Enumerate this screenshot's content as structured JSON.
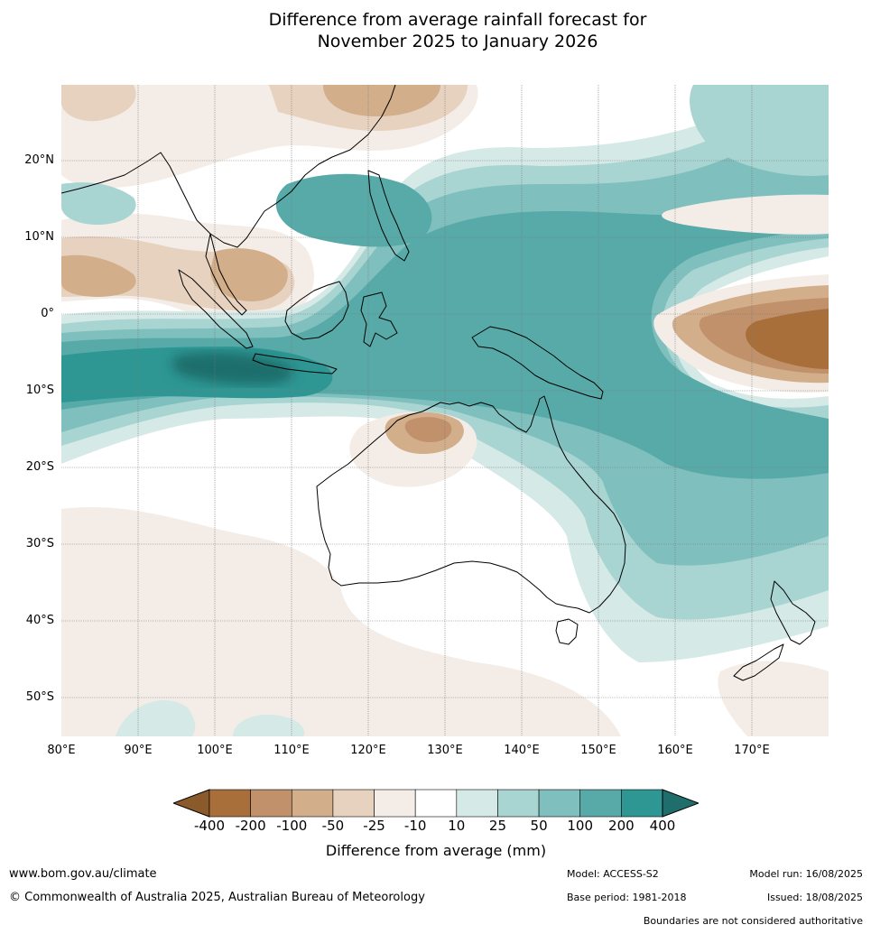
{
  "title_line1": "Difference from average rainfall forecast for",
  "title_line2": "November 2025 to January 2026",
  "latitude_labels": [
    "20°N",
    "10°N",
    "0°",
    "10°S",
    "20°S",
    "30°S",
    "40°S",
    "50°S"
  ],
  "longitude_labels": [
    "80°E",
    "90°E",
    "100°E",
    "110°E",
    "120°E",
    "130°E",
    "140°E",
    "150°E",
    "160°E",
    "170°E"
  ],
  "colorbar": {
    "labels": [
      "-400",
      "-200",
      "-100",
      "-50",
      "-25",
      "-10",
      "10",
      "25",
      "50",
      "100",
      "200",
      "400"
    ],
    "colors": [
      "#8b5a2b",
      "#a86f3b",
      "#c0916a",
      "#d2ae8b",
      "#e6d2bf",
      "#f4ede7",
      "#ffffff",
      "#d5e9e7",
      "#a8d4d2",
      "#7fbfbd",
      "#57aaa8",
      "#2e9693",
      "#1f6e6c"
    ],
    "title": "Difference from average (mm)"
  },
  "footer": {
    "website": "www.bom.gov.au/climate",
    "copyright": "© Commonwealth of Australia 2025, Australian Bureau of Meteorology",
    "model": "Model: ACCESS-S2",
    "base_period": "Base period: 1981-2018",
    "model_run": "Model run: 16/08/2025",
    "issued": "Issued: 18/08/2025",
    "disclaimer": "Boundaries are not considered authoritative"
  }
}
